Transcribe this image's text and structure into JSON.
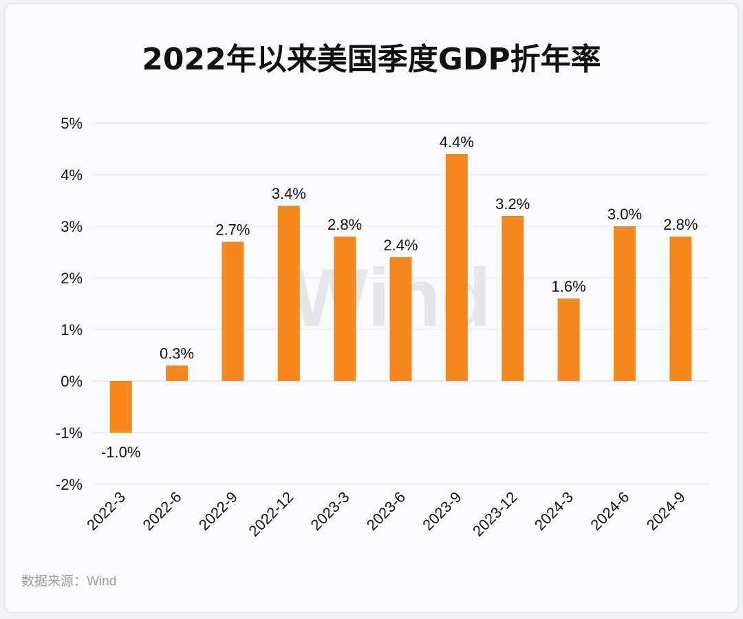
{
  "chart_data": {
    "type": "bar",
    "title": "2022年以来美国季度GDP折年率",
    "categories": [
      "2022-3",
      "2022-6",
      "2022-9",
      "2022-12",
      "2023-3",
      "2023-6",
      "2023-9",
      "2023-12",
      "2024-3",
      "2024-6",
      "2024-9"
    ],
    "values": [
      -1.0,
      0.3,
      2.7,
      3.4,
      2.8,
      2.4,
      4.4,
      3.2,
      1.6,
      3.0,
      2.8
    ],
    "value_labels": [
      "-1.0%",
      "0.3%",
      "2.7%",
      "3.4%",
      "2.8%",
      "2.4%",
      "4.4%",
      "3.2%",
      "1.6%",
      "3.0%",
      "2.8%"
    ],
    "yticks": [
      5,
      4,
      3,
      2,
      1,
      0,
      -1,
      -2
    ],
    "ytick_labels": [
      "5%",
      "4%",
      "3%",
      "2%",
      "1%",
      "0%",
      "-1%",
      "-2%"
    ],
    "ylim": [
      -2,
      5
    ],
    "xlabel": "",
    "ylabel": "",
    "grid": true,
    "legend": "none",
    "bar_color": "#f5891f",
    "source": "数据来源：Wind",
    "watermark": "Wind"
  }
}
